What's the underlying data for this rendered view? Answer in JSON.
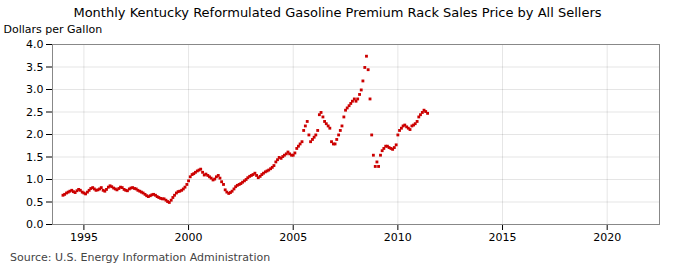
{
  "chart_data": {
    "type": "scatter",
    "title": "Monthly Kentucky Reformulated Gasoline Premium Rack Sales Price by All Sellers",
    "ylabel": "Dollars per Gallon",
    "annotations": [
      "Source: U.S. Energy Information Administration"
    ],
    "xlim": [
      1993.5,
      2022.5
    ],
    "ylim": [
      0.0,
      4.0
    ],
    "xticks": [
      1995,
      2000,
      2005,
      2010,
      2015,
      2020
    ],
    "yticks": [
      {
        "value": 0.0,
        "label": "0.0"
      },
      0.5,
      {
        "value": 1.0,
        "label": "1.0"
      },
      1.5,
      {
        "value": 2.0,
        "label": "2.0"
      },
      2.5,
      {
        "value": 3.0,
        "label": "3.0"
      },
      3.5,
      {
        "value": 4.0,
        "label": "4.0"
      }
    ],
    "grid": true,
    "color": "#cc0000",
    "marker": "square",
    "x": [
      1994.0,
      1994.08,
      1994.17,
      1994.25,
      1994.33,
      1994.42,
      1994.5,
      1994.58,
      1994.67,
      1994.75,
      1994.83,
      1994.92,
      1995.0,
      1995.08,
      1995.17,
      1995.25,
      1995.33,
      1995.42,
      1995.5,
      1995.58,
      1995.67,
      1995.75,
      1995.83,
      1995.92,
      1996.0,
      1996.08,
      1996.17,
      1996.25,
      1996.33,
      1996.42,
      1996.5,
      1996.58,
      1996.67,
      1996.75,
      1996.83,
      1996.92,
      1997.0,
      1997.08,
      1997.17,
      1997.25,
      1997.33,
      1997.42,
      1997.5,
      1997.58,
      1997.67,
      1997.75,
      1997.83,
      1997.92,
      1998.0,
      1998.08,
      1998.17,
      1998.25,
      1998.33,
      1998.42,
      1998.5,
      1998.58,
      1998.67,
      1998.75,
      1998.83,
      1998.92,
      1999.0,
      1999.08,
      1999.17,
      1999.25,
      1999.33,
      1999.42,
      1999.5,
      1999.58,
      1999.67,
      1999.75,
      1999.83,
      1999.92,
      2000.0,
      2000.08,
      2000.17,
      2000.25,
      2000.33,
      2000.42,
      2000.5,
      2000.58,
      2000.67,
      2000.75,
      2000.83,
      2000.92,
      2001.0,
      2001.08,
      2001.17,
      2001.25,
      2001.33,
      2001.42,
      2001.5,
      2001.58,
      2001.67,
      2001.75,
      2001.83,
      2001.92,
      2002.0,
      2002.08,
      2002.17,
      2002.25,
      2002.33,
      2002.42,
      2002.5,
      2002.58,
      2002.67,
      2002.75,
      2002.83,
      2002.92,
      2003.0,
      2003.08,
      2003.17,
      2003.25,
      2003.33,
      2003.42,
      2003.5,
      2003.58,
      2003.67,
      2003.75,
      2003.83,
      2003.92,
      2004.0,
      2004.08,
      2004.17,
      2004.25,
      2004.33,
      2004.42,
      2004.5,
      2004.58,
      2004.67,
      2004.75,
      2004.83,
      2004.92,
      2005.0,
      2005.08,
      2005.17,
      2005.25,
      2005.33,
      2005.42,
      2005.5,
      2005.58,
      2005.67,
      2005.75,
      2005.83,
      2005.92,
      2006.0,
      2006.08,
      2006.17,
      2006.25,
      2006.33,
      2006.42,
      2006.5,
      2006.58,
      2006.67,
      2006.75,
      2006.83,
      2006.92,
      2007.0,
      2007.08,
      2007.17,
      2007.25,
      2007.33,
      2007.42,
      2007.5,
      2007.58,
      2007.67,
      2007.75,
      2007.83,
      2007.92,
      2008.0,
      2008.08,
      2008.17,
      2008.25,
      2008.33,
      2008.42,
      2008.5,
      2008.58,
      2008.67,
      2008.75,
      2008.83,
      2008.92,
      2009.0,
      2009.08,
      2009.17,
      2009.25,
      2009.33,
      2009.42,
      2009.5,
      2009.58,
      2009.67,
      2009.75,
      2009.83,
      2009.92,
      2010.0,
      2010.08,
      2010.17,
      2010.25,
      2010.33,
      2010.42,
      2010.5,
      2010.58,
      2010.67,
      2010.75,
      2010.83,
      2010.92,
      2011.0,
      2011.08,
      2011.17,
      2011.25,
      2011.33,
      2011.42
    ],
    "values": [
      0.65,
      0.67,
      0.7,
      0.72,
      0.74,
      0.76,
      0.73,
      0.71,
      0.75,
      0.78,
      0.76,
      0.72,
      0.7,
      0.68,
      0.72,
      0.76,
      0.8,
      0.82,
      0.79,
      0.76,
      0.77,
      0.79,
      0.82,
      0.76,
      0.74,
      0.78,
      0.83,
      0.86,
      0.84,
      0.81,
      0.79,
      0.77,
      0.8,
      0.83,
      0.82,
      0.78,
      0.76,
      0.75,
      0.79,
      0.81,
      0.82,
      0.8,
      0.79,
      0.76,
      0.74,
      0.72,
      0.7,
      0.67,
      0.64,
      0.62,
      0.64,
      0.66,
      0.67,
      0.65,
      0.62,
      0.6,
      0.58,
      0.57,
      0.57,
      0.54,
      0.51,
      0.49,
      0.54,
      0.6,
      0.65,
      0.7,
      0.73,
      0.74,
      0.76,
      0.79,
      0.83,
      0.89,
      0.97,
      1.06,
      1.11,
      1.13,
      1.16,
      1.19,
      1.21,
      1.23,
      1.16,
      1.1,
      1.12,
      1.09,
      1.06,
      1.03,
      0.99,
      1.01,
      1.06,
      1.09,
      1.03,
      0.95,
      0.89,
      0.77,
      0.72,
      0.69,
      0.71,
      0.74,
      0.79,
      0.84,
      0.87,
      0.89,
      0.91,
      0.94,
      0.97,
      1.0,
      1.04,
      1.07,
      1.09,
      1.11,
      1.14,
      1.09,
      1.04,
      1.07,
      1.11,
      1.14,
      1.17,
      1.19,
      1.21,
      1.24,
      1.27,
      1.31,
      1.39,
      1.44,
      1.49,
      1.47,
      1.51,
      1.54,
      1.57,
      1.61,
      1.57,
      1.54,
      1.54,
      1.59,
      1.69,
      1.74,
      1.79,
      1.84,
      2.09,
      2.19,
      2.29,
      1.99,
      1.84,
      1.89,
      1.94,
      1.99,
      2.09,
      2.44,
      2.49,
      2.39,
      2.29,
      2.24,
      2.19,
      2.14,
      1.84,
      1.79,
      1.79,
      1.89,
      1.99,
      2.09,
      2.19,
      2.39,
      2.54,
      2.59,
      2.64,
      2.69,
      2.74,
      2.79,
      2.74,
      2.79,
      2.89,
      2.99,
      3.19,
      3.49,
      3.74,
      3.44,
      2.79,
      1.99,
      1.54,
      1.29,
      1.39,
      1.29,
      1.54,
      1.64,
      1.69,
      1.74,
      1.74,
      1.71,
      1.69,
      1.67,
      1.71,
      1.77,
      1.99,
      2.09,
      2.14,
      2.19,
      2.21,
      2.17,
      2.14,
      2.11,
      2.19,
      2.21,
      2.24,
      2.29,
      2.39,
      2.44,
      2.49,
      2.54,
      2.51,
      2.47
    ]
  }
}
